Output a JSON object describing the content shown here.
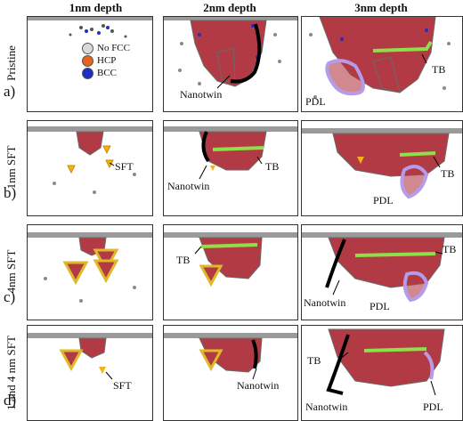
{
  "columns": [
    "1nm depth",
    "2nm depth",
    "3nm depth"
  ],
  "rows": [
    {
      "letter": "a)",
      "title": "Pristine"
    },
    {
      "letter": "b)",
      "title": "1nm SFT"
    },
    {
      "letter": "c)",
      "title": "4nm SFT"
    },
    {
      "letter": "d)",
      "title": "1 and 4 nm SFT"
    }
  ],
  "legend": [
    {
      "label": "No FCC",
      "color": "#d9d9d9"
    },
    {
      "label": "HCP",
      "color": "#e8621c"
    },
    {
      "label": "BCC",
      "color": "#1d2fc7"
    }
  ],
  "annotations": {
    "nanotwin": "Nanotwin",
    "tb": "TB",
    "pdl": "PDL",
    "sft": "SFT"
  },
  "colors": {
    "crystal": "#b23a44",
    "twin_line": "#000000",
    "tb_line": "#8ee04a",
    "pdl_line": "#b59be8",
    "sft_fill": "#f3b21a",
    "sft_outline": "#e0b92a"
  }
}
